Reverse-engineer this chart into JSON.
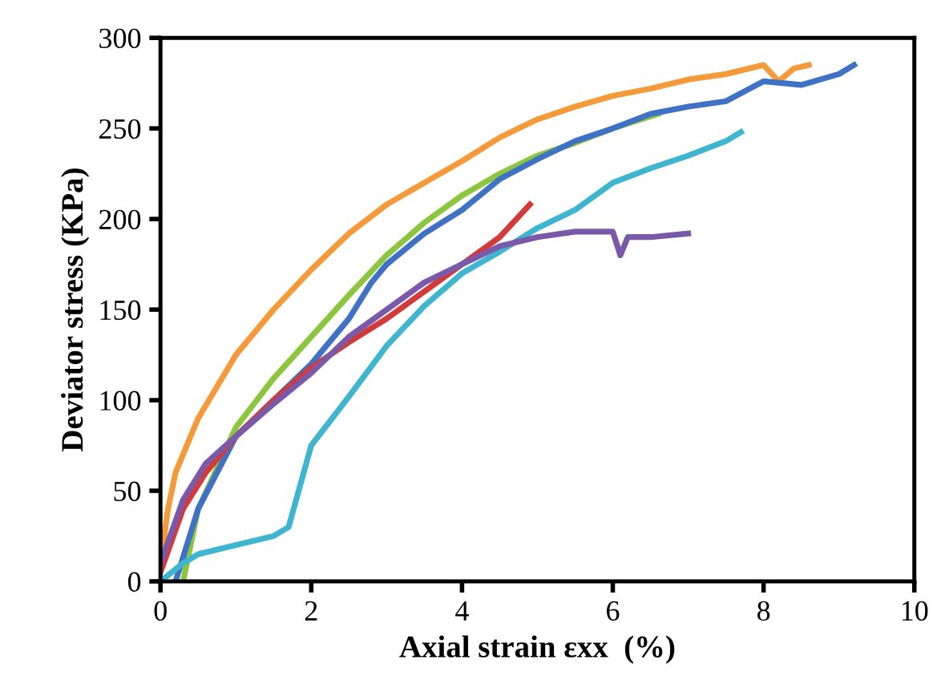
{
  "chart_data": {
    "type": "line",
    "xlabel": "Axial strain εxx  (%)",
    "ylabel": "Deviator stress (KPa)",
    "xlim": [
      0,
      10
    ],
    "ylim": [
      0,
      300
    ],
    "xticks": [
      0,
      2,
      4,
      6,
      8,
      10
    ],
    "yticks": [
      0,
      50,
      100,
      150,
      200,
      250,
      300
    ],
    "grid": false,
    "marker": "none",
    "line_style": "solid",
    "series": [
      {
        "color": "#f59a3a",
        "x": [
          0,
          0.1,
          0.2,
          0.5,
          1,
          1.5,
          2,
          2.5,
          3,
          3.5,
          4,
          4.5,
          5,
          5.5,
          6,
          6.5,
          7,
          7.5,
          8,
          8.2,
          8.4,
          8.6
        ],
        "values": [
          10,
          40,
          60,
          90,
          125,
          150,
          172,
          192,
          208,
          220,
          232,
          245,
          255,
          262,
          268,
          272,
          277,
          280,
          285,
          276,
          283,
          285
        ]
      },
      {
        "color": "#8cc63f",
        "x": [
          0.3,
          0.5,
          1,
          1.5,
          2,
          2.5,
          3,
          3.5,
          4,
          4.5,
          5,
          5.5,
          6,
          6.6
        ],
        "values": [
          0,
          40,
          85,
          112,
          135,
          158,
          180,
          198,
          213,
          225,
          235,
          242,
          250,
          258
        ]
      },
      {
        "color": "#3f72c4",
        "x": [
          0.2,
          0.5,
          1,
          1.5,
          2,
          2.5,
          2.8,
          3,
          3.5,
          4,
          4.5,
          5,
          5.5,
          6,
          6.5,
          7,
          7.5,
          8,
          8.5,
          9,
          9.2
        ],
        "values": [
          0,
          40,
          80,
          100,
          120,
          145,
          165,
          175,
          192,
          205,
          222,
          233,
          243,
          250,
          258,
          262,
          265,
          276,
          274,
          280,
          285
        ]
      },
      {
        "color": "#d33b3b",
        "x": [
          0,
          0.3,
          0.6,
          1,
          1.5,
          2,
          2.5,
          3,
          3.5,
          4,
          4.5,
          4.9
        ],
        "values": [
          5,
          40,
          60,
          80,
          100,
          118,
          132,
          145,
          160,
          175,
          190,
          208
        ]
      },
      {
        "color": "#3fb5cf",
        "x": [
          0,
          0.3,
          0.5,
          1,
          1.5,
          1.7,
          2,
          2.5,
          3,
          3.5,
          4,
          4.5,
          5,
          5.5,
          6,
          6.5,
          7,
          7.5,
          7.7
        ],
        "values": [
          0,
          10,
          15,
          20,
          25,
          30,
          75,
          102,
          130,
          152,
          170,
          182,
          195,
          205,
          220,
          228,
          235,
          243,
          248
        ]
      },
      {
        "color": "#7a5aa8",
        "x": [
          0,
          0.3,
          0.6,
          1,
          1.5,
          2,
          2.5,
          3,
          3.5,
          4,
          4.5,
          5,
          5.5,
          6,
          6.1,
          6.2,
          6.5,
          7
        ],
        "values": [
          10,
          45,
          65,
          80,
          98,
          115,
          135,
          150,
          165,
          175,
          185,
          190,
          193,
          193,
          180,
          190,
          190,
          192
        ]
      }
    ]
  }
}
